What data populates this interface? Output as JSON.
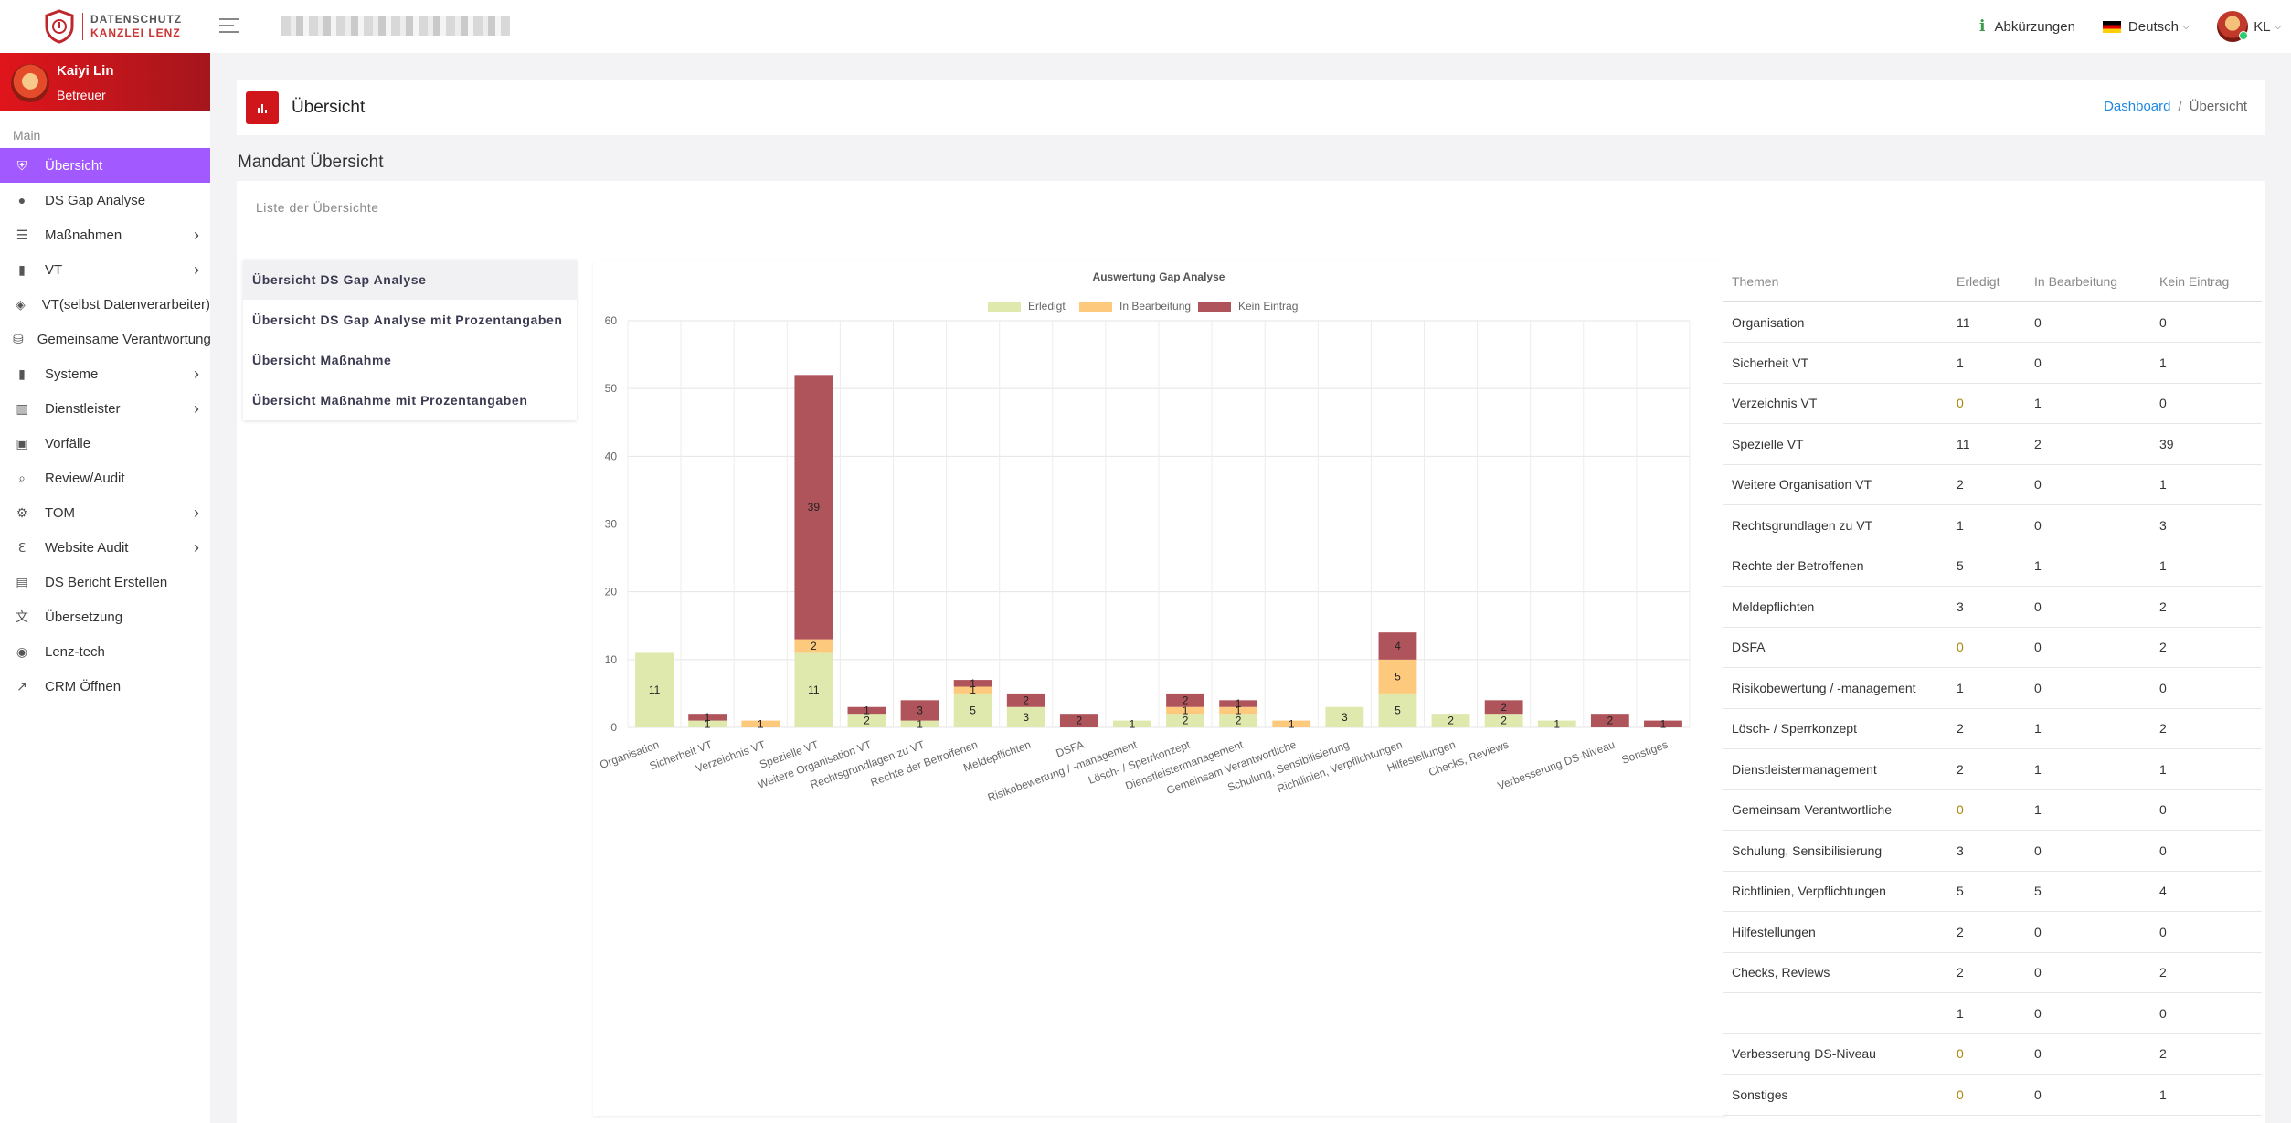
{
  "app": {
    "logo_line1": "DATENSCHUTZ",
    "logo_line2": "KANZLEI LENZ"
  },
  "topbar": {
    "abbreviations": "Abkürzungen",
    "language": "Deutsch",
    "user_initials": "KL"
  },
  "sidebar": {
    "user_name": "Kaiyi Lin",
    "user_role": "Betreuer",
    "section": "Main",
    "items": [
      {
        "label": "Übersicht",
        "icon": "shield-icon",
        "arrow": false
      },
      {
        "label": "DS Gap Analyse",
        "icon": "chat-icon",
        "arrow": false
      },
      {
        "label": "Maßnahmen",
        "icon": "list-icon",
        "arrow": true
      },
      {
        "label": "VT",
        "icon": "document-icon",
        "arrow": true
      },
      {
        "label": "VT(selbst Datenverarbeiter)",
        "icon": "layers-icon",
        "arrow": false
      },
      {
        "label": "Gemeinsame Verantwortung",
        "icon": "database-icon",
        "arrow": false
      },
      {
        "label": "Systeme",
        "icon": "document-icon",
        "arrow": true
      },
      {
        "label": "Dienstleister",
        "icon": "building-icon",
        "arrow": true
      },
      {
        "label": "Vorfälle",
        "icon": "truck-icon",
        "arrow": false
      },
      {
        "label": "Review/Audit",
        "icon": "search-icon",
        "arrow": false
      },
      {
        "label": "TOM",
        "icon": "gear-icon",
        "arrow": true
      },
      {
        "label": "Website Audit",
        "icon": "browser-icon",
        "arrow": true
      },
      {
        "label": "DS Bericht Erstellen",
        "icon": "report-icon",
        "arrow": false
      },
      {
        "label": "Übersetzung",
        "icon": "translate-icon",
        "arrow": false
      },
      {
        "label": "Lenz-tech",
        "icon": "robot-icon",
        "arrow": false
      },
      {
        "label": "CRM Öffnen",
        "icon": "external-link-icon",
        "arrow": false
      }
    ]
  },
  "page": {
    "title": "Übersicht",
    "breadcrumb_home": "Dashboard",
    "breadcrumb_current": "Übersicht",
    "mandant_title": "Mandant Übersicht",
    "card_subtitle": "Liste der Übersichte"
  },
  "menu": [
    "Übersicht DS Gap Analyse",
    "Übersicht DS Gap Analyse mit Prozentangaben",
    "Übersicht Maßnahme",
    "Übersicht Maßnahme mit Prozentangaben"
  ],
  "chart_data": {
    "type": "bar",
    "stacked": true,
    "title": "Auswertung Gap Analyse",
    "categories": [
      "Organisation",
      "Sicherheit VT",
      "Verzeichnis  VT",
      "Spezielle VT",
      "Weitere Organisation VT",
      "Rechtsgrundlagen zu VT",
      "Rechte der Betroffenen",
      "Meldepflichten",
      "DSFA",
      "Risikobewertung / -management",
      "Lösch- / Sperrkonzept",
      "Dienstleistermanagement",
      "Gemeinsam Verantwortliche",
      "Schulung, Sensibilisierung",
      "Richtlinien, Verpflichtungen",
      "Hilfestellungen",
      "Checks, Reviews",
      "",
      "Verbesserung DS-Niveau",
      "Sonstiges"
    ],
    "series": [
      {
        "name": "Erledigt",
        "color": "#dfe8ad",
        "values": [
          11,
          1,
          0,
          11,
          2,
          1,
          5,
          3,
          0,
          1,
          2,
          2,
          0,
          3,
          5,
          2,
          2,
          1,
          0,
          0
        ]
      },
      {
        "name": "In Bearbeitung",
        "color": "#fdc97c",
        "values": [
          0,
          0,
          1,
          2,
          0,
          0,
          1,
          0,
          0,
          0,
          1,
          1,
          1,
          0,
          5,
          0,
          0,
          0,
          0,
          0
        ]
      },
      {
        "name": "Kein Eintrag",
        "color": "#b0545b",
        "values": [
          0,
          1,
          0,
          39,
          1,
          3,
          1,
          2,
          2,
          0,
          2,
          1,
          0,
          0,
          4,
          0,
          2,
          0,
          2,
          1
        ]
      }
    ],
    "ylim": [
      0,
      60
    ],
    "yticks": [
      0,
      10,
      20,
      30,
      40,
      50,
      60
    ],
    "legend": "top",
    "grid": true
  },
  "table": {
    "headers": [
      "Themen",
      "Erledigt",
      "In Bearbeitung",
      "Kein Eintrag"
    ],
    "rows": [
      [
        "Organisation",
        "11",
        "0",
        "0"
      ],
      [
        "Sicherheit VT",
        "1",
        "0",
        "1"
      ],
      [
        "Verzeichnis VT",
        "0",
        "1",
        "0"
      ],
      [
        "Spezielle VT",
        "11",
        "2",
        "39"
      ],
      [
        "Weitere Organisation VT",
        "2",
        "0",
        "1"
      ],
      [
        "Rechtsgrundlagen zu VT",
        "1",
        "0",
        "3"
      ],
      [
        "Rechte der Betroffenen",
        "5",
        "1",
        "1"
      ],
      [
        "Meldepflichten",
        "3",
        "0",
        "2"
      ],
      [
        "DSFA",
        "0",
        "0",
        "2"
      ],
      [
        "Risikobewertung / -management",
        "1",
        "0",
        "0"
      ],
      [
        "Lösch- / Sperrkonzept",
        "2",
        "1",
        "2"
      ],
      [
        "Dienstleistermanagement",
        "2",
        "1",
        "1"
      ],
      [
        "Gemeinsam Verantwortliche",
        "0",
        "1",
        "0"
      ],
      [
        "Schulung, Sensibilisierung",
        "3",
        "0",
        "0"
      ],
      [
        "Richtlinien, Verpflichtungen",
        "5",
        "5",
        "4"
      ],
      [
        "Hilfestellungen",
        "2",
        "0",
        "0"
      ],
      [
        "Checks, Reviews",
        "2",
        "0",
        "2"
      ],
      [
        "",
        "1",
        "0",
        "0"
      ],
      [
        "Verbesserung DS-Niveau",
        "0",
        "0",
        "2"
      ],
      [
        "Sonstiges",
        "0",
        "0",
        "1"
      ]
    ]
  }
}
